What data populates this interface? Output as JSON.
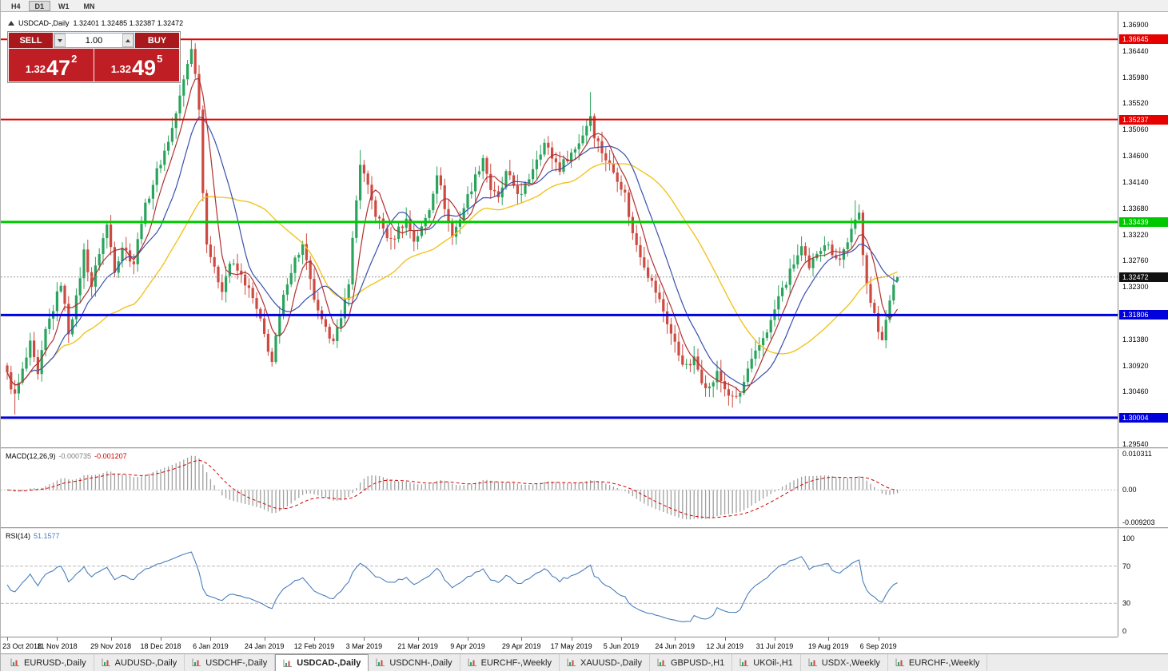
{
  "app": {
    "toolbar": {
      "timeframes": [
        {
          "label": "H4",
          "active": false
        },
        {
          "label": "D1",
          "active": true
        },
        {
          "label": "W1",
          "active": false
        },
        {
          "label": "MN",
          "active": false
        }
      ]
    },
    "chart_title": {
      "symbol": "USDCAD-,Daily",
      "ohlc": "1.32401 1.32485 1.32387 1.32472"
    },
    "trade_panel": {
      "sell_label": "SELL",
      "buy_label": "BUY",
      "volume": "1.00",
      "bid": {
        "prefix": "1.32",
        "main": "47",
        "sup": "2"
      },
      "ask": {
        "prefix": "1.32",
        "main": "49",
        "sup": "5"
      }
    },
    "tabs": [
      {
        "label": "EURUSD-,Daily",
        "active": false
      },
      {
        "label": "AUDUSD-,Daily",
        "active": false
      },
      {
        "label": "USDCHF-,Daily",
        "active": false
      },
      {
        "label": "USDCAD-,Daily",
        "active": true
      },
      {
        "label": "USDCNH-,Daily",
        "active": false
      },
      {
        "label": "EURCHF-,Weekly",
        "active": false
      },
      {
        "label": "XAUUSD-,Daily",
        "active": false
      },
      {
        "label": "GBPUSD-,H1",
        "active": false
      },
      {
        "label": "UKOil-,H1",
        "active": false
      },
      {
        "label": "USDX-,Weekly",
        "active": false
      },
      {
        "label": "EURCHF-,Weekly",
        "active": false
      }
    ]
  },
  "indicators": {
    "macd": {
      "label": "MACD(12,26,9)",
      "value_main": "-0.000735",
      "value_signal": "-0.001207",
      "axis_labels": [
        "0.010311",
        "0.00",
        "-0.009203"
      ]
    },
    "rsi": {
      "label": "RSI(14)",
      "value": "51.1577",
      "axis_values": [
        100,
        70,
        30,
        0
      ],
      "levels": [
        70,
        30
      ]
    }
  },
  "chart_data": {
    "type": "candlestick",
    "symbol": "USDCAD",
    "timeframe": "Daily",
    "title": "USDCAD-,Daily",
    "visible_range": {
      "start": "23 Oct 2018",
      "end": "13 Sep 2019"
    },
    "candle_count": 233,
    "ohlc_current": {
      "open": 1.32401,
      "high": 1.32485,
      "low": 1.32387,
      "close": 1.32472
    },
    "price_axis": {
      "top_price": 1.369,
      "bottom_price": 1.2954,
      "labels": [
        "1.36900",
        "1.36440",
        "1.35980",
        "1.35520",
        "1.35060",
        "1.34600",
        "1.34140",
        "1.33680",
        "1.33220",
        "1.32760",
        "1.32300",
        "1.31380",
        "1.30920",
        "1.30460",
        "1.29540"
      ]
    },
    "hlines": [
      {
        "price": 1.36645,
        "label": "1.36645",
        "color": "#e60000",
        "width": 2,
        "role": "resistance"
      },
      {
        "price": 1.35237,
        "label": "1.35237",
        "color": "#e60000",
        "width": 2,
        "role": "resistance"
      },
      {
        "price": 1.33439,
        "label": "1.33439",
        "color": "#00c800",
        "width": 3,
        "role": "pivot"
      },
      {
        "price": 1.31806,
        "label": "1.31806",
        "color": "#0000dc",
        "width": 3,
        "role": "support"
      },
      {
        "price": 1.30004,
        "label": "1.30004",
        "color": "#0000dc",
        "width": 3,
        "role": "support"
      }
    ],
    "current_price": {
      "value": 1.32472,
      "label": "1.32472",
      "box_color": "#111111"
    },
    "dates": [
      {
        "idx": 0,
        "label": "23 Oct 2018"
      },
      {
        "idx": 13,
        "label": "11 Nov 2018"
      },
      {
        "idx": 27,
        "label": "29 Nov 2018"
      },
      {
        "idx": 40,
        "label": "18 Dec 2018"
      },
      {
        "idx": 53,
        "label": "6 Jan 2019"
      },
      {
        "idx": 67,
        "label": "24 Jan 2019"
      },
      {
        "idx": 80,
        "label": "12 Feb 2019"
      },
      {
        "idx": 93,
        "label": "3 Mar 2019"
      },
      {
        "idx": 107,
        "label": "21 Mar 2019"
      },
      {
        "idx": 120,
        "label": "9 Apr 2019"
      },
      {
        "idx": 134,
        "label": "29 Apr 2019"
      },
      {
        "idx": 147,
        "label": "17 May 2019"
      },
      {
        "idx": 160,
        "label": "5 Jun 2019"
      },
      {
        "idx": 174,
        "label": "24 Jun 2019"
      },
      {
        "idx": 187,
        "label": "12 Jul 2019"
      },
      {
        "idx": 200,
        "label": "31 Jul 2019"
      },
      {
        "idx": 214,
        "label": "19 Aug 2019"
      },
      {
        "idx": 227,
        "label": "6 Sep 2019"
      }
    ],
    "close_anchors": [
      [
        0,
        1.3075
      ],
      [
        2,
        1.3038
      ],
      [
        4,
        1.3082
      ],
      [
        6,
        1.3128
      ],
      [
        8,
        1.3072
      ],
      [
        10,
        1.3152
      ],
      [
        12,
        1.3192
      ],
      [
        14,
        1.3238
      ],
      [
        16,
        1.3152
      ],
      [
        18,
        1.3208
      ],
      [
        20,
        1.3292
      ],
      [
        22,
        1.3232
      ],
      [
        24,
        1.3292
      ],
      [
        26,
        1.3338
      ],
      [
        28,
        1.3262
      ],
      [
        30,
        1.3302
      ],
      [
        33,
        1.3272
      ],
      [
        35,
        1.3348
      ],
      [
        37,
        1.3392
      ],
      [
        39,
        1.3432
      ],
      [
        41,
        1.3468
      ],
      [
        43,
        1.3508
      ],
      [
        45,
        1.3562
      ],
      [
        47,
        1.3622
      ],
      [
        48,
        1.3652
      ],
      [
        49,
        1.3602
      ],
      [
        50,
        1.3548
      ],
      [
        51,
        1.3395
      ],
      [
        52,
        1.3312
      ],
      [
        54,
        1.3258
      ],
      [
        56,
        1.3228
      ],
      [
        58,
        1.3272
      ],
      [
        60,
        1.3258
      ],
      [
        62,
        1.3238
      ],
      [
        64,
        1.3208
      ],
      [
        66,
        1.3168
      ],
      [
        68,
        1.3122
      ],
      [
        69,
        1.3098
      ],
      [
        71,
        1.3178
      ],
      [
        73,
        1.3242
      ],
      [
        75,
        1.3278
      ],
      [
        77,
        1.3302
      ],
      [
        79,
        1.3238
      ],
      [
        81,
        1.3182
      ],
      [
        83,
        1.3152
      ],
      [
        85,
        1.3142
      ],
      [
        87,
        1.3168
      ],
      [
        89,
        1.3242
      ],
      [
        91,
        1.3382
      ],
      [
        92,
        1.3448
      ],
      [
        94,
        1.3402
      ],
      [
        96,
        1.3358
      ],
      [
        98,
        1.3332
      ],
      [
        100,
        1.3308
      ],
      [
        102,
        1.3332
      ],
      [
        104,
        1.3348
      ],
      [
        106,
        1.3312
      ],
      [
        108,
        1.3332
      ],
      [
        110,
        1.3368
      ],
      [
        112,
        1.3432
      ],
      [
        114,
        1.3372
      ],
      [
        116,
        1.3318
      ],
      [
        118,
        1.3352
      ],
      [
        120,
        1.3388
      ],
      [
        122,
        1.3422
      ],
      [
        124,
        1.3458
      ],
      [
        126,
        1.3402
      ],
      [
        128,
        1.3382
      ],
      [
        130,
        1.3428
      ],
      [
        132,
        1.3408
      ],
      [
        134,
        1.3388
      ],
      [
        136,
        1.3422
      ],
      [
        138,
        1.3458
      ],
      [
        140,
        1.3482
      ],
      [
        142,
        1.3458
      ],
      [
        144,
        1.3438
      ],
      [
        146,
        1.3458
      ],
      [
        148,
        1.3472
      ],
      [
        150,
        1.3498
      ],
      [
        152,
        1.3532
      ],
      [
        153,
        1.3498
      ],
      [
        155,
        1.3468
      ],
      [
        157,
        1.3442
      ],
      [
        159,
        1.3422
      ],
      [
        161,
        1.3392
      ],
      [
        163,
        1.3322
      ],
      [
        165,
        1.3288
      ],
      [
        167,
        1.3252
      ],
      [
        169,
        1.3222
      ],
      [
        171,
        1.3188
      ],
      [
        173,
        1.3148
      ],
      [
        175,
        1.3112
      ],
      [
        177,
        1.3088
      ],
      [
        179,
        1.3102
      ],
      [
        181,
        1.3068
      ],
      [
        183,
        1.3052
      ],
      [
        185,
        1.3078
      ],
      [
        187,
        1.3052
      ],
      [
        189,
        1.3032
      ],
      [
        191,
        1.3042
      ],
      [
        193,
        1.3082
      ],
      [
        195,
        1.3112
      ],
      [
        197,
        1.3142
      ],
      [
        199,
        1.3168
      ],
      [
        201,
        1.3212
      ],
      [
        203,
        1.3238
      ],
      [
        205,
        1.3272
      ],
      [
        207,
        1.3298
      ],
      [
        209,
        1.3258
      ],
      [
        211,
        1.3292
      ],
      [
        213,
        1.3308
      ],
      [
        215,
        1.3292
      ],
      [
        217,
        1.3278
      ],
      [
        219,
        1.3312
      ],
      [
        221,
        1.3342
      ],
      [
        222,
        1.3358
      ],
      [
        223,
        1.3292
      ],
      [
        224,
        1.3242
      ],
      [
        225,
        1.3202
      ],
      [
        226,
        1.3178
      ],
      [
        227,
        1.3152
      ],
      [
        228,
        1.3142
      ],
      [
        229,
        1.3178
      ],
      [
        230,
        1.3202
      ],
      [
        231,
        1.3228
      ],
      [
        232,
        1.32472
      ]
    ],
    "wick_overrides": [
      {
        "i": 2,
        "low": 1.3006
      },
      {
        "i": 48,
        "high": 1.36645
      },
      {
        "i": 92,
        "high": 1.347
      },
      {
        "i": 152,
        "high": 1.3572
      },
      {
        "i": 189,
        "low": 1.3018
      },
      {
        "i": 221,
        "high": 1.3382
      },
      {
        "i": 228,
        "low": 1.3136
      }
    ],
    "moving_average_periods": {
      "slow": 34,
      "mid": 13,
      "fast": 6
    },
    "colors": {
      "up": "#2aa35c",
      "down": "#cd4a41",
      "ma_slow": "#f0c420",
      "ma_mid": "#3a4fae",
      "ma_fast": "#b03030",
      "macd_hist": "#a0a0a0",
      "macd_signal": "#d40000",
      "rsi": "#4a7ebb"
    }
  }
}
